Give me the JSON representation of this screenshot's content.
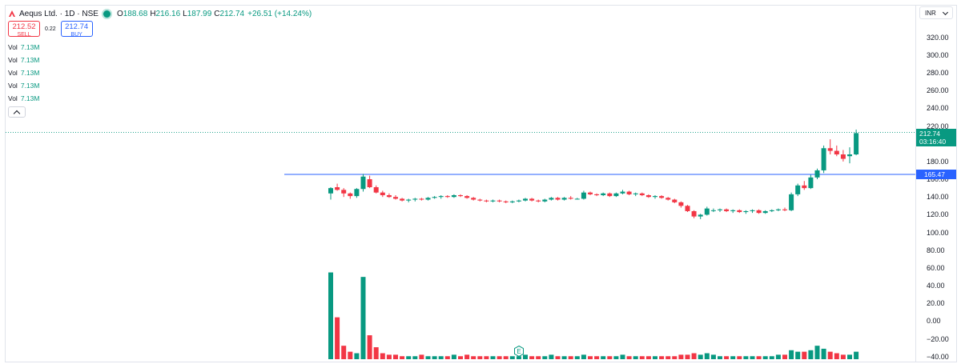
{
  "header": {
    "symbol": "Aequs Ltd. · 1D · NSE",
    "open_label": "O",
    "open": "188.68",
    "high_label": "H",
    "high": "216.16",
    "low_label": "L",
    "low": "187.99",
    "close_label": "C",
    "close": "212.74",
    "change": "+26.51 (+14.24%)"
  },
  "trade": {
    "sell_price": "212.52",
    "sell_label": "SELL",
    "spread": "0.22",
    "buy_price": "212.74",
    "buy_label": "BUY"
  },
  "volume_indicators": [
    {
      "label": "Vol",
      "value": "7.13M"
    },
    {
      "label": "Vol",
      "value": "7.13M"
    },
    {
      "label": "Vol",
      "value": "7.13M"
    },
    {
      "label": "Vol",
      "value": "7.13M"
    },
    {
      "label": "Vol",
      "value": "7.13M"
    }
  ],
  "currency": "INR",
  "price_tag": {
    "price": "212.74",
    "countdown": "03:16:40"
  },
  "hline_tag": "165.47",
  "earnings_marker": "E",
  "colors": {
    "up": "#089981",
    "down": "#f23645",
    "hline": "#2962ff",
    "last_price_line": "#089981"
  },
  "chart_data": {
    "type": "candlestick",
    "y_axis_ticks": [
      "320.00",
      "300.00",
      "280.00",
      "260.00",
      "240.00",
      "220.00",
      "200.00",
      "180.00",
      "160.00",
      "140.00",
      "120.00",
      "100.00",
      "80.00",
      "60.00",
      "40.00",
      "20.00",
      "0.00",
      "−20.00",
      "−40.00"
    ],
    "ylim": [
      -40,
      325
    ],
    "horizontal_line": 165.47,
    "last_price": 212.74,
    "candles": [
      [
        144,
        151,
        137,
        150
      ],
      [
        151,
        155,
        147,
        148
      ],
      [
        148,
        150,
        140,
        144
      ],
      [
        144,
        145,
        138,
        141
      ],
      [
        141,
        150,
        139,
        149
      ],
      [
        149,
        166,
        146,
        163
      ],
      [
        160,
        164,
        150,
        151
      ],
      [
        151,
        153,
        144,
        145
      ],
      [
        145,
        147,
        140,
        142
      ],
      [
        142,
        144,
        139,
        140
      ],
      [
        140,
        142,
        137,
        138
      ],
      [
        138,
        139,
        135,
        136
      ],
      [
        136,
        138,
        134,
        137
      ],
      [
        137,
        139,
        135,
        138
      ],
      [
        138,
        139,
        136,
        137
      ],
      [
        137,
        140,
        136,
        139
      ],
      [
        139,
        141,
        138,
        140
      ],
      [
        140,
        142,
        138,
        141
      ],
      [
        141,
        142,
        139,
        140
      ],
      [
        140,
        143,
        139,
        142
      ],
      [
        142,
        143,
        140,
        141
      ],
      [
        141,
        142,
        138,
        139
      ],
      [
        139,
        140,
        136,
        137
      ],
      [
        137,
        138,
        135,
        136
      ],
      [
        136,
        137,
        134,
        135
      ],
      [
        135,
        137,
        134,
        136
      ],
      [
        136,
        137,
        134,
        135
      ],
      [
        135,
        136,
        133,
        134
      ],
      [
        134,
        136,
        133,
        135
      ],
      [
        135,
        137,
        134,
        136
      ],
      [
        136,
        139,
        135,
        138
      ],
      [
        138,
        139,
        135,
        136
      ],
      [
        136,
        137,
        134,
        135
      ],
      [
        135,
        138,
        134,
        137
      ],
      [
        137,
        140,
        136,
        139
      ],
      [
        139,
        140,
        136,
        137
      ],
      [
        137,
        140,
        136,
        139
      ],
      [
        139,
        141,
        137,
        138
      ],
      [
        138,
        139,
        137,
        138
      ],
      [
        138,
        147,
        137,
        145
      ],
      [
        145,
        146,
        142,
        143
      ],
      [
        143,
        144,
        141,
        142
      ],
      [
        142,
        145,
        141,
        144
      ],
      [
        144,
        145,
        140,
        141
      ],
      [
        141,
        145,
        140,
        144
      ],
      [
        144,
        148,
        143,
        146
      ],
      [
        146,
        147,
        142,
        143
      ],
      [
        143,
        145,
        141,
        144
      ],
      [
        144,
        145,
        141,
        142
      ],
      [
        142,
        143,
        139,
        140
      ],
      [
        140,
        142,
        138,
        141
      ],
      [
        141,
        142,
        138,
        139
      ],
      [
        139,
        140,
        136,
        137
      ],
      [
        137,
        138,
        133,
        134
      ],
      [
        134,
        135,
        128,
        130
      ],
      [
        130,
        131,
        123,
        124
      ],
      [
        124,
        125,
        116,
        118
      ],
      [
        118,
        121,
        115,
        120
      ],
      [
        120,
        129,
        119,
        127
      ],
      [
        125,
        127,
        123,
        125
      ],
      [
        125,
        127,
        123,
        126
      ],
      [
        126,
        127,
        123,
        124
      ],
      [
        124,
        126,
        122,
        125
      ],
      [
        125,
        126,
        122,
        123
      ],
      [
        123,
        125,
        121,
        124
      ],
      [
        124,
        126,
        122,
        125
      ],
      [
        125,
        126,
        121,
        122
      ],
      [
        122,
        125,
        121,
        124
      ],
      [
        124,
        126,
        123,
        125
      ],
      [
        125,
        127,
        124,
        126
      ],
      [
        126,
        128,
        124,
        125
      ],
      [
        125,
        145,
        124,
        143
      ],
      [
        143,
        155,
        141,
        153
      ],
      [
        153,
        158,
        148,
        150
      ],
      [
        150,
        165,
        149,
        162
      ],
      [
        162,
        172,
        160,
        170
      ],
      [
        170,
        198,
        167,
        195
      ],
      [
        195,
        205,
        188,
        192
      ],
      [
        192,
        198,
        186,
        188
      ],
      [
        188,
        193,
        180,
        183
      ],
      [
        186,
        196,
        178,
        188
      ],
      [
        188,
        216,
        187,
        212
      ]
    ],
    "volume_scale_note": "relative",
    "volumes": [
      58,
      28,
      9,
      5,
      4,
      55,
      16,
      8,
      4,
      3,
      3,
      2,
      2,
      2,
      3,
      2,
      2,
      2,
      2,
      3,
      2,
      3,
      2,
      2,
      2,
      2,
      2,
      2,
      2,
      2,
      3,
      2,
      2,
      2,
      3,
      2,
      2,
      2,
      2,
      3,
      2,
      2,
      2,
      2,
      2,
      3,
      2,
      2,
      2,
      2,
      2,
      2,
      2,
      2,
      3,
      3,
      4,
      3,
      4,
      3,
      2,
      2,
      2,
      2,
      2,
      2,
      2,
      2,
      2,
      3,
      3,
      6,
      5,
      5,
      6,
      9,
      7,
      5,
      4,
      3,
      3,
      5
    ]
  }
}
